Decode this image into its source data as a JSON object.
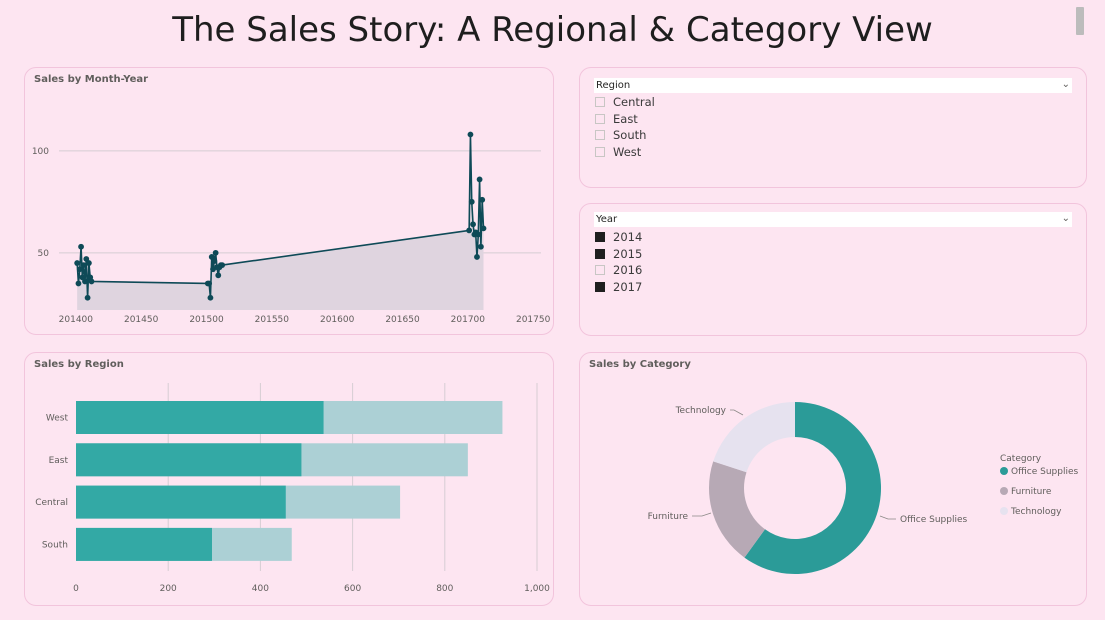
{
  "page": {
    "title": "The Sales Story: A Regional & Category View"
  },
  "colors": {
    "background": "#fde5f1",
    "line": "#0e4a57",
    "area": "#dfd4df",
    "bar_primary": "#33a9a5",
    "bar_secondary": "#acd0d5",
    "donut_office": "#2b9b98",
    "donut_furniture": "#b7a9b5",
    "donut_technology": "#e6e2ef"
  },
  "region_slicer": {
    "header": "Region",
    "items": [
      {
        "label": "Central",
        "checked": false
      },
      {
        "label": "East",
        "checked": false
      },
      {
        "label": "South",
        "checked": false
      },
      {
        "label": "West",
        "checked": false
      }
    ]
  },
  "year_slicer": {
    "header": "Year",
    "items": [
      {
        "label": "2014",
        "checked": true
      },
      {
        "label": "2015",
        "checked": true
      },
      {
        "label": "2016",
        "checked": false
      },
      {
        "label": "2017",
        "checked": true
      }
    ]
  },
  "chart_data": [
    {
      "id": "line",
      "type": "area",
      "title": "Sales by Month-Year",
      "xlabel": "",
      "ylabel": "",
      "xlim": [
        201394,
        201756
      ],
      "ylim": [
        22,
        120
      ],
      "xticks": [
        201400,
        201450,
        201500,
        201550,
        201600,
        201650,
        201700,
        201750
      ],
      "yticks": [
        50,
        100
      ],
      "grid": true,
      "x": [
        201401,
        201402,
        201403,
        201404,
        201405,
        201406,
        201407,
        201408,
        201409,
        201410,
        201411,
        201412,
        201501,
        201502,
        201503,
        201504,
        201505,
        201506,
        201507,
        201508,
        201509,
        201510,
        201511,
        201512,
        201701,
        201702,
        201703,
        201704,
        201705,
        201706,
        201707,
        201708,
        201709,
        201710,
        201711,
        201712
      ],
      "y": [
        45,
        35,
        42,
        53,
        38,
        44,
        36,
        47,
        28,
        45,
        38,
        36,
        35,
        35,
        28,
        48,
        42,
        46,
        50,
        43,
        39,
        43,
        44,
        44,
        61,
        108,
        75,
        64,
        59,
        60,
        48,
        59,
        86,
        53,
        76,
        62
      ]
    },
    {
      "id": "bar",
      "type": "bar",
      "title": "Sales by Region",
      "categories": [
        "West",
        "East",
        "Central",
        "South"
      ],
      "series": [
        {
          "values": [
            537,
            489,
            455,
            295
          ]
        },
        {
          "values": [
            925,
            850,
            703,
            468
          ]
        }
      ],
      "xlim": [
        0,
        1000
      ],
      "xticks": [
        0,
        200,
        400,
        600,
        800,
        1000
      ],
      "xtick_labels": [
        "0",
        "200",
        "400",
        "600",
        "800",
        "1,000"
      ],
      "grid": true
    },
    {
      "id": "donut",
      "type": "pie",
      "title": "Sales by Category",
      "legend_title": "Category",
      "legend_position": "right",
      "labels": [
        "Office Supplies",
        "Furniture",
        "Technology"
      ],
      "values": [
        60,
        20,
        20
      ]
    }
  ]
}
